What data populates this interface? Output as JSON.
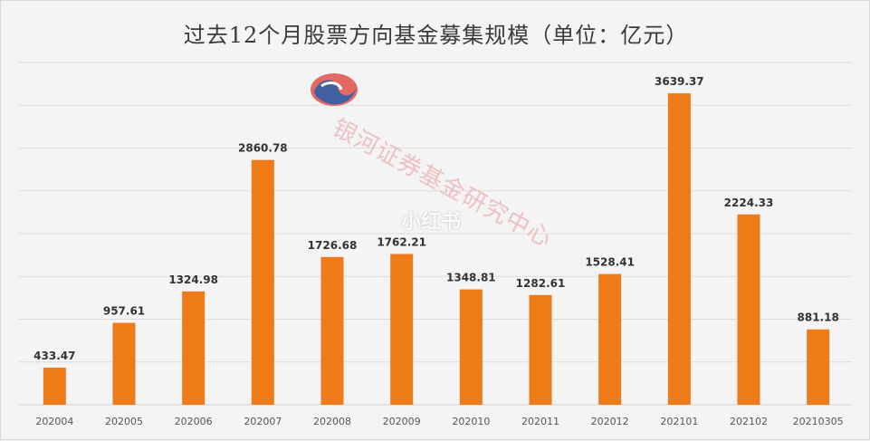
{
  "chart_data": {
    "type": "bar",
    "title": "过去12个月股票方向基金募集规模（单位：亿元）",
    "categories": [
      "202004",
      "202005",
      "202006",
      "202007",
      "202008",
      "202009",
      "202010",
      "202011",
      "202012",
      "202101",
      "202102",
      "20210305"
    ],
    "values": [
      433.47,
      957.61,
      1324.98,
      2860.78,
      1726.68,
      1762.21,
      1348.81,
      1282.61,
      1528.41,
      3639.37,
      2224.33,
      881.18
    ],
    "value_labels": [
      "433.47",
      "957.61",
      "1324.98",
      "2860.78",
      "1726.68",
      "1762.21",
      "1348.81",
      "1282.61",
      "1528.41",
      "3639.37",
      "2224.33",
      "881.18"
    ],
    "ylim": [
      0,
      4000
    ],
    "grid": true,
    "bar_color": "#ee7a18",
    "gridline_color": "#dcdcdc"
  },
  "watermark": {
    "text": "银河证券基金研究中心",
    "brand": "小红书",
    "logo_colors": [
      "#2f5fa8",
      "#e0504a"
    ]
  }
}
